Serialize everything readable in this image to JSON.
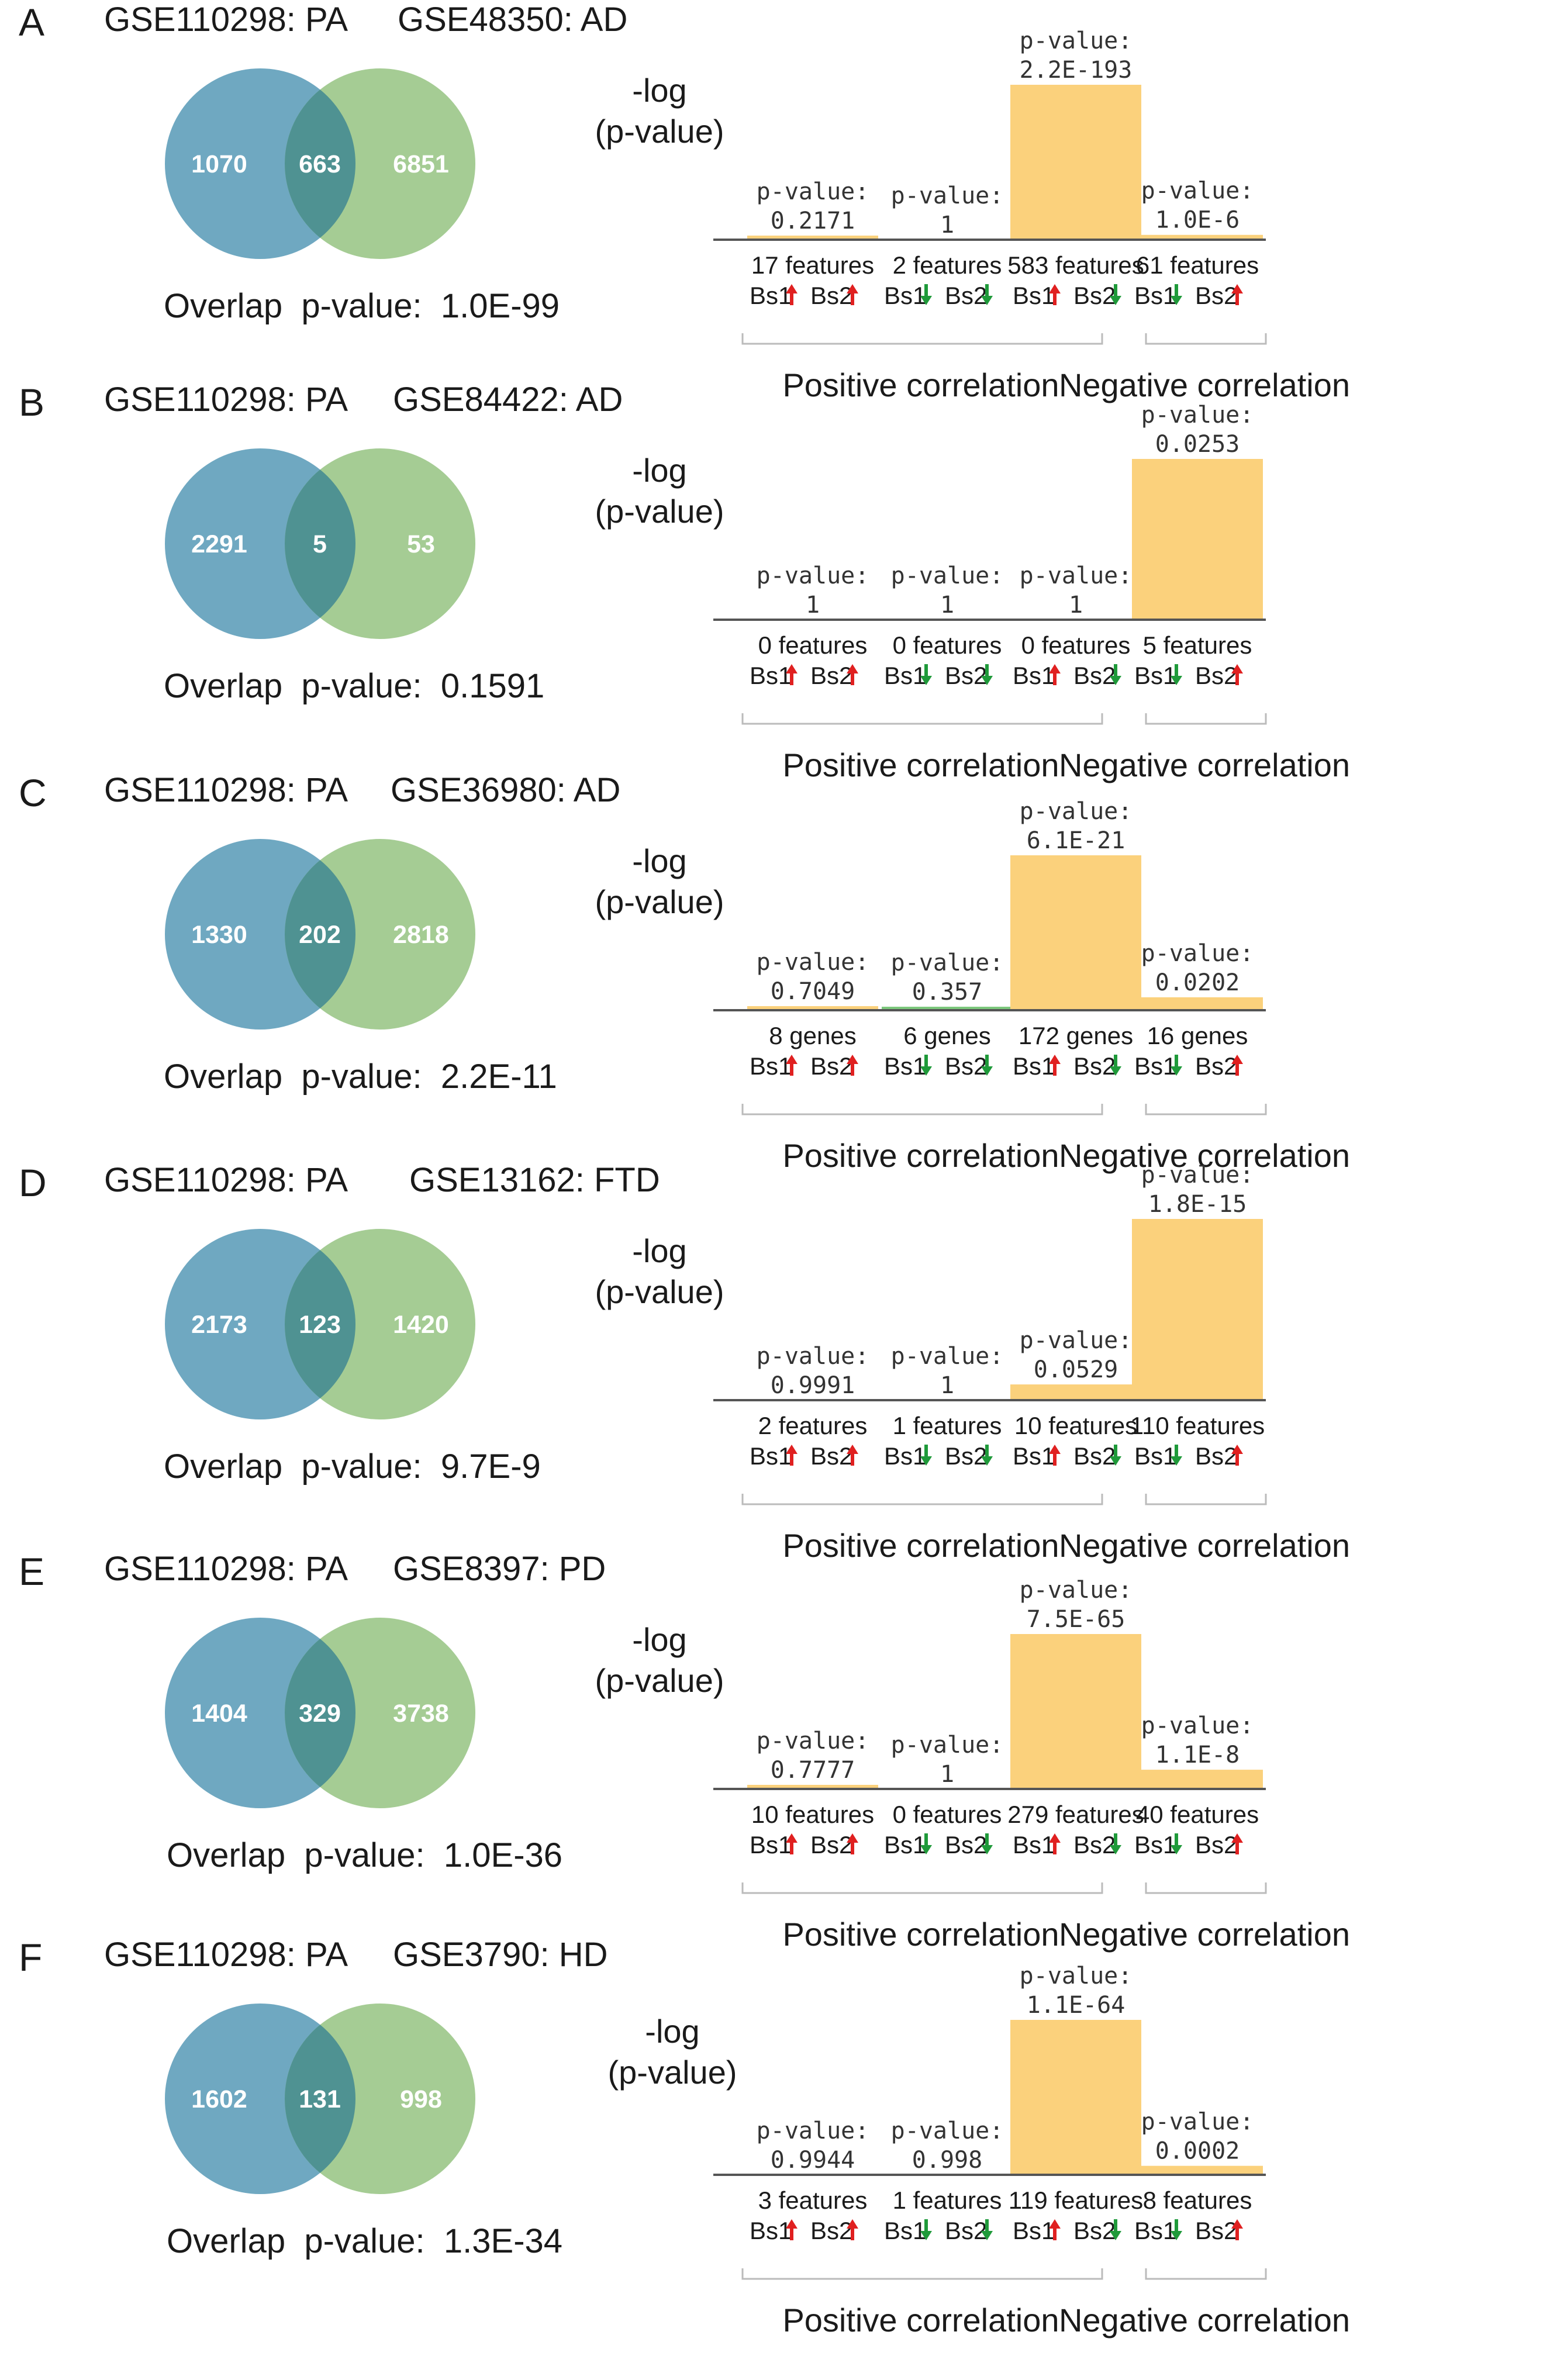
{
  "colors": {
    "venn_left": "#6fa8c1",
    "venn_right": "#a5cc94",
    "venn_overlap": "#4f9292",
    "bar_fill": "#fbd17c",
    "bar_small_green": "#7cc87c",
    "arrow_up": "#e02020",
    "arrow_down": "#1f9a3a"
  },
  "labels": {
    "neglog": "-log",
    "pvalue_axis": "(p-value)",
    "pvalue_prefix": "p-value:",
    "overlap_prefix": "Overlap  p-value:",
    "positive_group": "Positive correlation",
    "negative_group": "Negative correlation",
    "bs1": "Bs1",
    "bs2": "Bs2"
  },
  "chart_data": [
    {
      "panel": "A",
      "type": "bar",
      "venn": {
        "left_title": "GSE110298: PA",
        "right_title": "GSE48350: AD",
        "left_only": "1070",
        "overlap": "663",
        "right_only": "6851",
        "overlap_pvalue": "1.0E-99"
      },
      "categories": [
        "17 features",
        "2 features",
        "583 features",
        "61 features"
      ],
      "directions": [
        [
          "up",
          "up"
        ],
        [
          "down",
          "down"
        ],
        [
          "up",
          "down"
        ],
        [
          "down",
          "up"
        ]
      ],
      "pvalue_text": [
        "0.2171",
        "1",
        "2.2E-193",
        "1.0E-6"
      ],
      "values": [
        0.66,
        0,
        192.66,
        6.0
      ],
      "ylim": [
        0,
        192.66
      ],
      "ylabel": "-log (p-value)",
      "groups": [
        "Positive correlation",
        "Negative correlation"
      ]
    },
    {
      "panel": "B",
      "type": "bar",
      "venn": {
        "left_title": "GSE110298: PA",
        "right_title": "GSE84422: AD",
        "left_only": "2291",
        "overlap": "5",
        "right_only": "53",
        "overlap_pvalue": "0.1591"
      },
      "categories": [
        "0 features",
        "0 features",
        "0 features",
        "5 features"
      ],
      "directions": [
        [
          "up",
          "up"
        ],
        [
          "down",
          "down"
        ],
        [
          "up",
          "down"
        ],
        [
          "down",
          "up"
        ]
      ],
      "pvalue_text": [
        "1",
        "1",
        "1",
        "0.0253"
      ],
      "values": [
        0,
        0,
        0,
        1.6
      ],
      "ylim": [
        0,
        1.6
      ],
      "ylabel": "-log (p-value)",
      "groups": [
        "Positive correlation",
        "Negative correlation"
      ]
    },
    {
      "panel": "C",
      "type": "bar",
      "venn": {
        "left_title": "GSE110298: PA",
        "right_title": "GSE36980: AD",
        "left_only": "1330",
        "overlap": "202",
        "right_only": "2818",
        "overlap_pvalue": "2.2E-11"
      },
      "categories": [
        "8 genes",
        "6 genes",
        "172 genes",
        "16 genes"
      ],
      "directions": [
        [
          "up",
          "up"
        ],
        [
          "down",
          "down"
        ],
        [
          "up",
          "down"
        ],
        [
          "down",
          "up"
        ]
      ],
      "pvalue_text": [
        "0.7049",
        "0.357",
        "6.1E-21",
        "0.0202"
      ],
      "values": [
        0.15,
        0.45,
        20.21,
        1.69
      ],
      "ylim": [
        0,
        20.21
      ],
      "ylabel": "-log (p-value)",
      "groups": [
        "Positive correlation",
        "Negative correlation"
      ]
    },
    {
      "panel": "D",
      "type": "bar",
      "venn": {
        "left_title": "GSE110298: PA",
        "right_title": "GSE13162: FTD",
        "left_only": "2173",
        "overlap": "123",
        "right_only": "1420",
        "overlap_pvalue": "9.7E-9"
      },
      "categories": [
        "2 features",
        "1 features",
        "10 features",
        "110 features"
      ],
      "directions": [
        [
          "up",
          "up"
        ],
        [
          "down",
          "down"
        ],
        [
          "up",
          "down"
        ],
        [
          "down",
          "up"
        ]
      ],
      "pvalue_text": [
        "0.9991",
        "1",
        "0.0529",
        "1.8E-15"
      ],
      "values": [
        0,
        0,
        1.28,
        14.74
      ],
      "ylim": [
        0,
        14.74
      ],
      "ylabel": "-log (p-value)",
      "groups": [
        "Positive correlation",
        "Negative correlation"
      ]
    },
    {
      "panel": "E",
      "type": "bar",
      "venn": {
        "left_title": "GSE110298: PA",
        "right_title": "GSE8397: PD",
        "left_only": "1404",
        "overlap": "329",
        "right_only": "3738",
        "overlap_pvalue": "1.0E-36"
      },
      "categories": [
        "10 features",
        "0 features",
        "279 features",
        "40 features"
      ],
      "directions": [
        [
          "up",
          "up"
        ],
        [
          "down",
          "down"
        ],
        [
          "up",
          "down"
        ],
        [
          "down",
          "up"
        ]
      ],
      "pvalue_text": [
        "0.7777",
        "1",
        "7.5E-65",
        "1.1E-8"
      ],
      "values": [
        0.11,
        0,
        64.12,
        7.96
      ],
      "ylim": [
        0,
        64.12
      ],
      "ylabel": "-log (p-value)",
      "groups": [
        "Positive correlation",
        "Negative correlation"
      ]
    },
    {
      "panel": "F",
      "type": "bar",
      "venn": {
        "left_title": "GSE110298: PA",
        "right_title": "GSE3790: HD",
        "left_only": "1602",
        "overlap": "131",
        "right_only": "998",
        "overlap_pvalue": "1.3E-34"
      },
      "categories": [
        "3 features",
        "1 features",
        "119 features",
        "8 features"
      ],
      "directions": [
        [
          "up",
          "up"
        ],
        [
          "down",
          "down"
        ],
        [
          "up",
          "down"
        ],
        [
          "down",
          "up"
        ]
      ],
      "pvalue_text": [
        "0.9944",
        "0.998",
        "1.1E-64",
        "0.0002"
      ],
      "values": [
        0,
        0,
        63.96,
        3.7
      ],
      "ylim": [
        0,
        63.96
      ],
      "ylabel": "-log (p-value)",
      "groups": [
        "Positive correlation",
        "Negative correlation"
      ]
    }
  ]
}
